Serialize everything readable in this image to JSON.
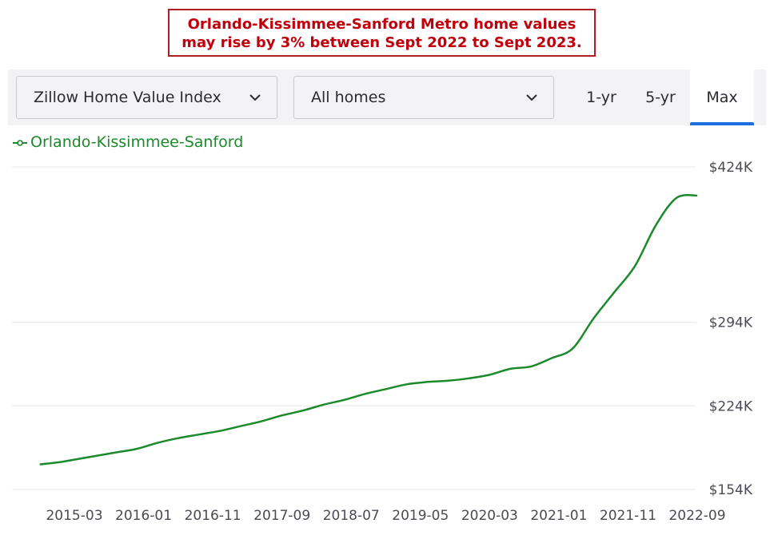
{
  "headline": {
    "line1": "Orlando-Kissimmee-Sanford Metro home values",
    "line2": "may rise by 3% between Sept 2022 to Sept 2023."
  },
  "toolbar": {
    "index_select": "Zillow Home Value Index",
    "homes_select": "All homes",
    "tabs": [
      "1-yr",
      "5-yr",
      "Max"
    ],
    "active_tab": "Max",
    "accent_color": "#1f6fe0"
  },
  "chart_data": {
    "type": "line",
    "title": "",
    "xlabel": "",
    "ylabel": "",
    "legend_placement": "top-left",
    "grid": true,
    "y_ticks": [
      "$424K",
      "$294K",
      "$224K",
      "$154K"
    ],
    "y_tick_values": [
      424,
      294,
      224,
      154
    ],
    "x_ticks": [
      "2015-03",
      "2016-01",
      "2016-11",
      "2017-09",
      "2018-07",
      "2019-05",
      "2020-03",
      "2021-01",
      "2021-11",
      "2022-09"
    ],
    "ylim": [
      154,
      424
    ],
    "series": [
      {
        "name": "Orlando-Kissimmee-Sanford",
        "color": "#1b8a2b",
        "x": [
          "2014-10",
          "2015-01",
          "2015-03",
          "2015-06",
          "2015-09",
          "2015-12",
          "2016-03",
          "2016-06",
          "2016-09",
          "2016-12",
          "2017-03",
          "2017-06",
          "2017-09",
          "2017-12",
          "2018-03",
          "2018-06",
          "2018-09",
          "2018-12",
          "2019-03",
          "2019-06",
          "2019-09",
          "2019-12",
          "2020-03",
          "2020-06",
          "2020-09",
          "2020-12",
          "2021-03",
          "2021-06",
          "2021-09",
          "2021-12",
          "2022-03",
          "2022-06",
          "2022-09"
        ],
        "y": [
          175,
          177,
          179,
          182,
          185,
          188,
          193,
          197,
          200,
          203,
          207,
          211,
          216,
          220,
          225,
          229,
          234,
          238,
          242,
          244,
          245,
          247,
          250,
          255,
          257,
          264,
          272,
          297,
          319,
          341,
          375,
          398,
          400
        ]
      }
    ]
  }
}
